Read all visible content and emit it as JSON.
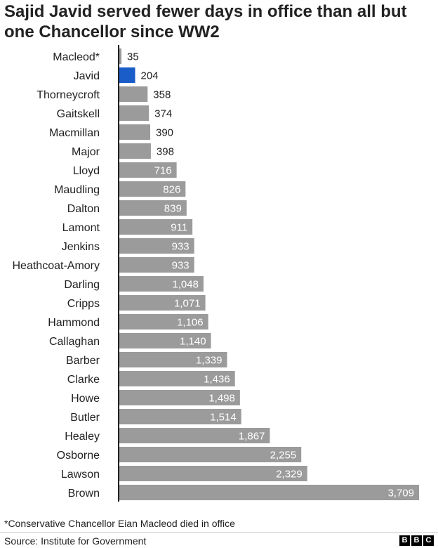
{
  "title": "Sajid Javid served fewer days in office than all but one Chancellor since WW2",
  "footnote": "*Conservative Chancellor Eian Macleod died in office",
  "source": "Source: Institute for Government",
  "logo": [
    "B",
    "B",
    "C"
  ],
  "colors": {
    "bar": "#9b9b9b",
    "highlight": "#1a5dc8",
    "axis": "#222222",
    "label_inside": "#ffffff",
    "label_outside": "#222222"
  },
  "chart_data": {
    "type": "bar",
    "orientation": "horizontal",
    "categories": [
      "Macleod*",
      "Javid",
      "Thorneycroft",
      "Gaitskell",
      "Macmillan",
      "Major",
      "Lloyd",
      "Maudling",
      "Dalton",
      "Lamont",
      "Jenkins",
      "Heathcoat-Amory",
      "Darling",
      "Cripps",
      "Hammond",
      "Callaghan",
      "Barber",
      "Clarke",
      "Howe",
      "Butler",
      "Healey",
      "Osborne",
      "Lawson",
      "Brown"
    ],
    "values": [
      35,
      204,
      358,
      374,
      390,
      398,
      716,
      826,
      839,
      911,
      933,
      933,
      1048,
      1071,
      1106,
      1140,
      1339,
      1436,
      1498,
      1514,
      1867,
      2255,
      2329,
      3709
    ],
    "value_labels": [
      "35",
      "204",
      "358",
      "374",
      "390",
      "398",
      "716",
      "826",
      "839",
      "911",
      "933",
      "933",
      "1,048",
      "1,071",
      "1,106",
      "1,140",
      "1,339",
      "1,436",
      "1,498",
      "1,514",
      "1,867",
      "2,255",
      "2,329",
      "3,709"
    ],
    "highlight": "Javid",
    "xlim": [
      0,
      3709
    ],
    "grid": false
  }
}
